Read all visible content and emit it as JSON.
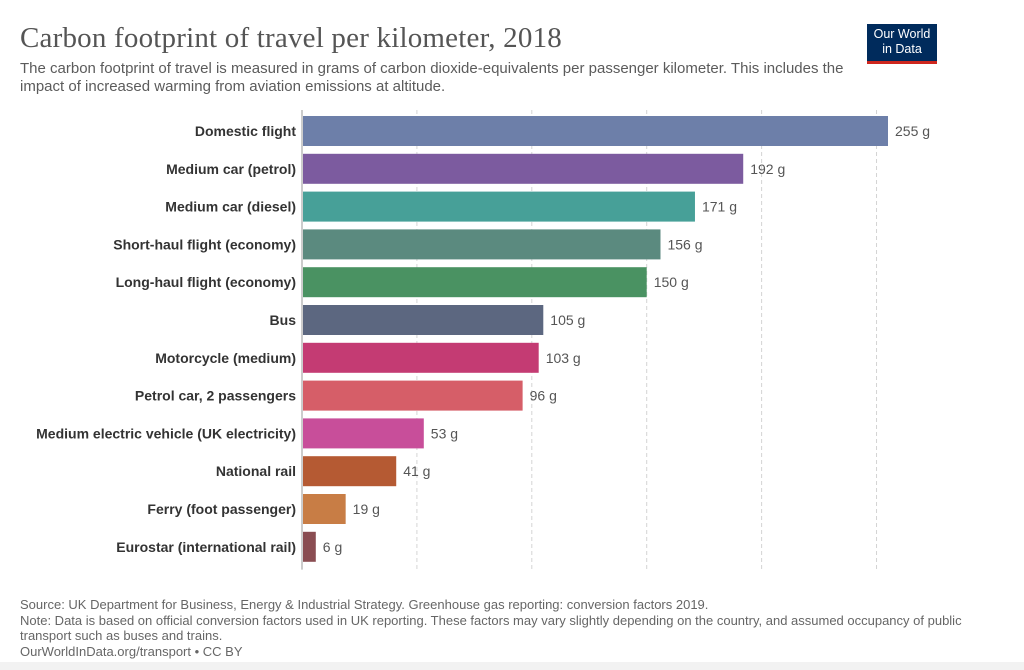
{
  "logo": {
    "line1": "Our World",
    "line2": "in Data"
  },
  "chart_data": {
    "type": "bar",
    "orientation": "horizontal",
    "title": "Carbon footprint of travel per kilometer, 2018",
    "subtitle": "The carbon footprint of travel is measured in grams of carbon dioxide-equivalents per passenger kilometer. This includes the impact of increased warming from aviation emissions at altitude.",
    "categories": [
      "Domestic flight",
      "Medium car (petrol)",
      "Medium car (diesel)",
      "Short-haul flight (economy)",
      "Long-haul flight (economy)",
      "Bus",
      "Motorcycle (medium)",
      "Petrol car, 2 passengers",
      "Medium electric vehicle (UK electricity)",
      "National rail",
      "Ferry (foot passenger)",
      "Eurostar (international rail)"
    ],
    "values": [
      255,
      192,
      171,
      156,
      150,
      105,
      103,
      96,
      53,
      41,
      19,
      6
    ],
    "value_labels": [
      "255 g",
      "192 g",
      "171 g",
      "156 g",
      "150 g",
      "105 g",
      "103 g",
      "96 g",
      "53 g",
      "41 g",
      "19 g",
      "6 g"
    ],
    "colors": [
      "#6d7fa9",
      "#7c5b9f",
      "#47a098",
      "#5b8a7f",
      "#4a9262",
      "#5c6780",
      "#c43b73",
      "#d65e68",
      "#c84e9a",
      "#b55a33",
      "#c87d45",
      "#8a4d52"
    ],
    "xlim": [
      0,
      255
    ],
    "grid": true,
    "gridline_values": [
      50,
      100,
      150,
      200,
      250
    ],
    "legend": "none"
  },
  "footer": {
    "source": "Source: UK Department for Business, Energy & Industrial Strategy. Greenhouse gas reporting: conversion factors 2019.",
    "note": "Note: Data is based on official conversion factors used in UK reporting. These factors may vary slightly depending on the country, and assumed occupancy of public transport such as buses and trains.",
    "credit": "OurWorldInData.org/transport • CC BY"
  }
}
